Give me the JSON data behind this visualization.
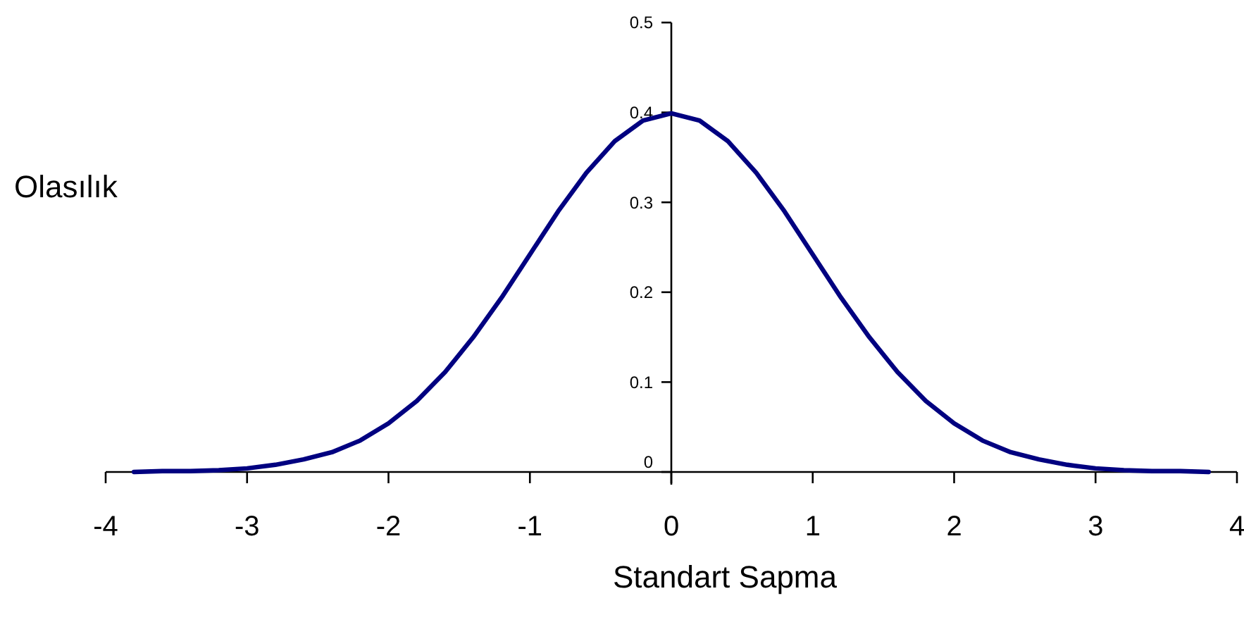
{
  "chart_data": {
    "type": "line",
    "xlabel": "Standart Sapma",
    "ylabel": "Olasılık",
    "x": [
      -3.8,
      -3.6,
      -3.4,
      -3.2,
      -3.0,
      -2.8,
      -2.6,
      -2.4,
      -2.2,
      -2.0,
      -1.8,
      -1.6,
      -1.4,
      -1.2,
      -1.0,
      -0.8,
      -0.6,
      -0.4,
      -0.2,
      0,
      0.2,
      0.4,
      0.6,
      0.8,
      1.0,
      1.2,
      1.4,
      1.6,
      1.8,
      2.0,
      2.2,
      2.4,
      2.6,
      2.8,
      3.0,
      3.2,
      3.4,
      3.6,
      3.8
    ],
    "series": [
      {
        "color": "#000080",
        "values": [
          0.0,
          0.001,
          0.001,
          0.002,
          0.004,
          0.008,
          0.014,
          0.022,
          0.035,
          0.054,
          0.079,
          0.111,
          0.15,
          0.194,
          0.242,
          0.29,
          0.333,
          0.368,
          0.391,
          0.399,
          0.391,
          0.368,
          0.333,
          0.29,
          0.242,
          0.194,
          0.15,
          0.111,
          0.079,
          0.054,
          0.035,
          0.022,
          0.014,
          0.008,
          0.004,
          0.002,
          0.001,
          0.001,
          0.0
        ]
      }
    ],
    "xlim": [
      -4,
      4
    ],
    "ylim": [
      0,
      0.5
    ],
    "xticks": [
      -4,
      -3,
      -2,
      -1,
      0,
      1,
      2,
      3,
      4
    ],
    "yticks": [
      0,
      0.1,
      0.2,
      0.3,
      0.4,
      0.5
    ],
    "line_style": "solid"
  }
}
